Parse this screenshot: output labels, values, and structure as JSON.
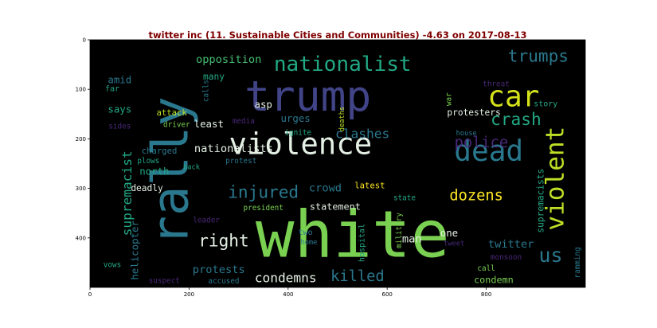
{
  "chart_data": {
    "type": "wordcloud",
    "title": "twitter inc (11. Sustainable Cities and Communities) -4.63 on 2017-08-13",
    "xlim": [
      0,
      1000
    ],
    "ylim": [
      500,
      0
    ],
    "x_ticks": [
      0,
      200,
      400,
      600,
      800
    ],
    "y_ticks": [
      0,
      100,
      200,
      300,
      400
    ],
    "words": [
      {
        "text": "white",
        "x": 530,
        "y": 395,
        "size": 130,
        "color": "#7ad151",
        "rotate": 0
      },
      {
        "text": "trump",
        "x": 440,
        "y": 115,
        "size": 85,
        "color": "#414487",
        "rotate": 0
      },
      {
        "text": "rally",
        "x": 162,
        "y": 265,
        "size": 100,
        "color": "#2a788e",
        "rotate": -90
      },
      {
        "text": "violence",
        "x": 425,
        "y": 210,
        "size": 60,
        "color": "#e5f0e5",
        "rotate": 0
      },
      {
        "text": "nationalist",
        "x": 510,
        "y": 50,
        "size": 42,
        "color": "#22a884",
        "rotate": 0
      },
      {
        "text": "dead",
        "x": 805,
        "y": 225,
        "size": 58,
        "color": "#2a788e",
        "rotate": 0
      },
      {
        "text": "car",
        "x": 855,
        "y": 115,
        "size": 58,
        "color": "#d5e21a",
        "rotate": 0
      },
      {
        "text": "violent",
        "x": 940,
        "y": 280,
        "size": 50,
        "color": "#bddf26",
        "rotate": -90
      },
      {
        "text": "trumps",
        "x": 905,
        "y": 32,
        "size": 34,
        "color": "#2a788e",
        "rotate": 0
      },
      {
        "text": "crash",
        "x": 860,
        "y": 160,
        "size": 34,
        "color": "#22a884",
        "rotate": 0
      },
      {
        "text": "police",
        "x": 790,
        "y": 208,
        "size": 30,
        "color": "#482878",
        "rotate": 0
      },
      {
        "text": "clashes",
        "x": 550,
        "y": 190,
        "size": 26,
        "color": "#2a788e",
        "rotate": 0
      },
      {
        "text": "injured",
        "x": 350,
        "y": 307,
        "size": 34,
        "color": "#2a788e",
        "rotate": 0
      },
      {
        "text": "dozens",
        "x": 780,
        "y": 315,
        "size": 30,
        "color": "#fde725",
        "rotate": 0
      },
      {
        "text": "right",
        "x": 270,
        "y": 405,
        "size": 34,
        "color": "#e5f0e5",
        "rotate": 0
      },
      {
        "text": "condemns",
        "x": 395,
        "y": 481,
        "size": 26,
        "color": "#e5f0e5",
        "rotate": 0
      },
      {
        "text": "killed",
        "x": 540,
        "y": 478,
        "size": 30,
        "color": "#2a788e",
        "rotate": 0
      },
      {
        "text": "us",
        "x": 930,
        "y": 435,
        "size": 40,
        "color": "#2a788e",
        "rotate": 0
      },
      {
        "text": "supremacist",
        "x": 75,
        "y": 310,
        "size": 26,
        "color": "#22a884",
        "rotate": -90
      },
      {
        "text": "opposition",
        "x": 280,
        "y": 40,
        "size": 22,
        "color": "#44bf70",
        "rotate": 0
      },
      {
        "text": "amid",
        "x": 60,
        "y": 80,
        "size": 20,
        "color": "#2a788e",
        "rotate": 0
      },
      {
        "text": "far",
        "x": 45,
        "y": 100,
        "size": 16,
        "color": "#22a884",
        "rotate": 0
      },
      {
        "text": "says",
        "x": 60,
        "y": 140,
        "size": 20,
        "color": "#22a884",
        "rotate": 0
      },
      {
        "text": "many",
        "x": 250,
        "y": 75,
        "size": 18,
        "color": "#22a884",
        "rotate": 0
      },
      {
        "text": "sides",
        "x": 60,
        "y": 175,
        "size": 15,
        "color": "#482878",
        "rotate": 0
      },
      {
        "text": "attack",
        "x": 165,
        "y": 148,
        "size": 17,
        "color": "#bddf26",
        "rotate": 0
      },
      {
        "text": "driver",
        "x": 175,
        "y": 172,
        "size": 15,
        "color": "#7ad151",
        "rotate": 0
      },
      {
        "text": "charged",
        "x": 140,
        "y": 225,
        "size": 17,
        "color": "#2a788e",
        "rotate": 0
      },
      {
        "text": "plows",
        "x": 118,
        "y": 245,
        "size": 15,
        "color": "#22a884",
        "rotate": 0
      },
      {
        "text": "back",
        "x": 205,
        "y": 258,
        "size": 14,
        "color": "#22a884",
        "rotate": 0
      },
      {
        "text": "nationalists",
        "x": 290,
        "y": 220,
        "size": 22,
        "color": "#e5f0e5",
        "rotate": 0
      },
      {
        "text": "protest",
        "x": 305,
        "y": 245,
        "size": 15,
        "color": "#2a788e",
        "rotate": 0
      },
      {
        "text": "north",
        "x": 130,
        "y": 265,
        "size": 20,
        "color": "#22a884",
        "rotate": 0
      },
      {
        "text": "least",
        "x": 240,
        "y": 170,
        "size": 20,
        "color": "#e5f0e5",
        "rotate": 0
      },
      {
        "text": "calls",
        "x": 235,
        "y": 103,
        "size": 15,
        "color": "#2a788e",
        "rotate": -90
      },
      {
        "text": "asp",
        "x": 350,
        "y": 130,
        "size": 20,
        "color": "#e5f0e5",
        "rotate": 0
      },
      {
        "text": "urges",
        "x": 415,
        "y": 158,
        "size": 20,
        "color": "#2a788e",
        "rotate": 0
      },
      {
        "text": "media",
        "x": 310,
        "y": 165,
        "size": 15,
        "color": "#482878",
        "rotate": 0
      },
      {
        "text": "ignite",
        "x": 420,
        "y": 188,
        "size": 15,
        "color": "#22a884",
        "rotate": 0
      },
      {
        "text": "deaths",
        "x": 510,
        "y": 160,
        "size": 14,
        "color": "#bddf26",
        "rotate": -90
      },
      {
        "text": "war",
        "x": 725,
        "y": 120,
        "size": 15,
        "color": "#7ad151",
        "rotate": -90
      },
      {
        "text": "threat",
        "x": 820,
        "y": 90,
        "size": 15,
        "color": "#482878",
        "rotate": 0
      },
      {
        "text": "story",
        "x": 920,
        "y": 130,
        "size": 16,
        "color": "#22a884",
        "rotate": 0
      },
      {
        "text": "protesters",
        "x": 775,
        "y": 147,
        "size": 18,
        "color": "#e5f0e5",
        "rotate": 0
      },
      {
        "text": "house",
        "x": 760,
        "y": 190,
        "size": 14,
        "color": "#2a788e",
        "rotate": 0
      },
      {
        "text": "supremacists",
        "x": 910,
        "y": 325,
        "size": 18,
        "color": "#22a884",
        "rotate": -90
      },
      {
        "text": "crowd",
        "x": 475,
        "y": 300,
        "size": 22,
        "color": "#2a788e",
        "rotate": 0
      },
      {
        "text": "deadly",
        "x": 115,
        "y": 300,
        "size": 18,
        "color": "#e5f0e5",
        "rotate": 0
      },
      {
        "text": "latest",
        "x": 565,
        "y": 295,
        "size": 17,
        "color": "#fde725",
        "rotate": 0
      },
      {
        "text": "state",
        "x": 635,
        "y": 320,
        "size": 15,
        "color": "#22a884",
        "rotate": 0
      },
      {
        "text": "statement",
        "x": 495,
        "y": 337,
        "size": 19,
        "color": "#e5f0e5",
        "rotate": 0
      },
      {
        "text": "president",
        "x": 350,
        "y": 340,
        "size": 15,
        "color": "#7ad151",
        "rotate": 0
      },
      {
        "text": "leader",
        "x": 235,
        "y": 365,
        "size": 15,
        "color": "#482878",
        "rotate": 0
      },
      {
        "text": "helicopter",
        "x": 90,
        "y": 425,
        "size": 20,
        "color": "#2a788e",
        "rotate": -90
      },
      {
        "text": "military",
        "x": 625,
        "y": 385,
        "size": 15,
        "color": "#7ad151",
        "rotate": -90
      },
      {
        "text": "hospital",
        "x": 550,
        "y": 410,
        "size": 16,
        "color": "#22a884",
        "rotate": -90
      },
      {
        "text": "two",
        "x": 435,
        "y": 390,
        "size": 16,
        "color": "#2a788e",
        "rotate": 0
      },
      {
        "text": "home",
        "x": 442,
        "y": 410,
        "size": 14,
        "color": "#2a788e",
        "rotate": 0
      },
      {
        "text": "man",
        "x": 650,
        "y": 403,
        "size": 22,
        "color": "#e5f0e5",
        "rotate": 0
      },
      {
        "text": "one",
        "x": 725,
        "y": 390,
        "size": 20,
        "color": "#e5f0e5",
        "rotate": 0
      },
      {
        "text": "tweet",
        "x": 735,
        "y": 412,
        "size": 14,
        "color": "#482878",
        "rotate": 0
      },
      {
        "text": "twitter",
        "x": 850,
        "y": 413,
        "size": 22,
        "color": "#2a788e",
        "rotate": 0
      },
      {
        "text": "monsoon",
        "x": 840,
        "y": 440,
        "size": 15,
        "color": "#482878",
        "rotate": 0
      },
      {
        "text": "call",
        "x": 800,
        "y": 462,
        "size": 15,
        "color": "#7ad151",
        "rotate": 0
      },
      {
        "text": "ramming",
        "x": 985,
        "y": 450,
        "size": 15,
        "color": "#2a788e",
        "rotate": -90
      },
      {
        "text": "condemn",
        "x": 815,
        "y": 485,
        "size": 19,
        "color": "#7ad151",
        "rotate": 0
      },
      {
        "text": "protests",
        "x": 260,
        "y": 465,
        "size": 22,
        "color": "#2a788e",
        "rotate": 0
      },
      {
        "text": "vows",
        "x": 45,
        "y": 455,
        "size": 15,
        "color": "#22a884",
        "rotate": 0
      },
      {
        "text": "accused",
        "x": 270,
        "y": 488,
        "size": 15,
        "color": "#2a788e",
        "rotate": 0
      },
      {
        "text": "suspect",
        "x": 150,
        "y": 487,
        "size": 15,
        "color": "#482878",
        "rotate": 0
      }
    ]
  }
}
